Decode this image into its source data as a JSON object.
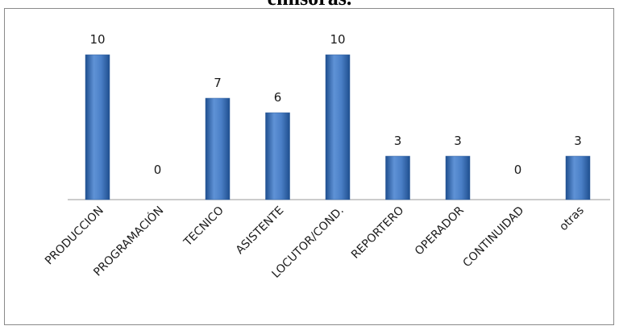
{
  "chart_data": {
    "type": "bar",
    "title": "emisoras.",
    "categories": [
      "PRODUCCION",
      "PROGRAMACIÓN",
      "TECNICO",
      "ASISTENTE",
      "LOCUTOR/COND.",
      "REPORTERO",
      "OPERADOR",
      "CONTINUIDAD",
      "otras"
    ],
    "values": [
      10,
      0,
      7,
      6,
      10,
      3,
      3,
      0,
      3
    ],
    "ylim": [
      0,
      10
    ],
    "grid": false,
    "legend": "none",
    "bar_color": "#3a6fb4"
  }
}
